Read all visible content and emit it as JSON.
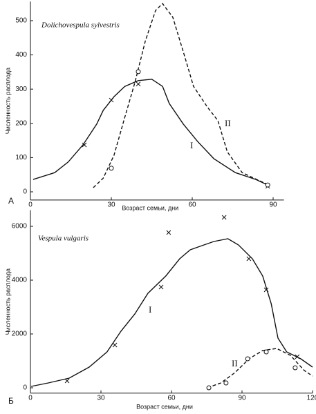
{
  "chart_data": [
    {
      "type": "line",
      "title": "Dolichovespula sylvestris",
      "panel_label": "А",
      "x_label": "Возраст семьи, дни",
      "y_label": "Численность расплода",
      "xlim": [
        0,
        94
      ],
      "ylim": [
        -24,
        556
      ],
      "xticks": [
        0,
        30,
        60,
        90
      ],
      "yticks": [
        0,
        100,
        200,
        300,
        400,
        500
      ],
      "series": [
        {
          "name": "I",
          "style": "solid",
          "color": "#111",
          "x": [
            1,
            9,
            14,
            19.5,
            24.6,
            27,
            31,
            35,
            40,
            45,
            49,
            51.5,
            56.7,
            62,
            68,
            76,
            83.6,
            88
          ],
          "values": [
            36,
            56,
            87,
            137,
            198,
            238,
            278,
            308,
            325,
            329,
            308,
            258,
            198,
            147,
            97,
            56,
            36,
            20
          ]
        },
        {
          "name": "II",
          "style": "dashed",
          "color": "#111",
          "x": [
            23.3,
            27,
            31,
            35,
            38.7,
            42.6,
            46.4,
            49,
            52.8,
            56.7,
            60.5,
            65.6,
            69.5,
            73,
            78.5,
            85,
            88
          ],
          "values": [
            12,
            40,
            107,
            218,
            318,
            440,
            530,
            550,
            510,
            409,
            308,
            248,
            208,
            117,
            56,
            32,
            22
          ]
        }
      ],
      "markers": [
        {
          "shape": "x",
          "x": [
            20,
            30,
            40,
            88
          ],
          "values": [
            137,
            268,
            315,
            16
          ]
        },
        {
          "shape": "o",
          "x": [
            30,
            40,
            88
          ],
          "values": [
            69,
            351,
            20
          ]
        }
      ]
    },
    {
      "type": "line",
      "title": "Vespula vulgaris",
      "panel_label": "Б",
      "x_label": "Возраст семьи, дни",
      "y_label": "Численность расплода",
      "xlim": [
        0,
        120
      ],
      "ylim": [
        -200,
        6600
      ],
      "xticks": [
        0,
        30,
        60,
        90,
        120
      ],
      "yticks": [
        0,
        2000,
        4000,
        6000
      ],
      "series": [
        {
          "name": "I",
          "style": "solid",
          "color": "#111",
          "x": [
            0.3,
            7.6,
            16.5,
            25,
            32.6,
            38.5,
            44.4,
            50,
            57.6,
            63.5,
            68,
            73.8,
            78,
            84,
            88.5,
            94.4,
            98.8,
            102.4,
            105.3,
            109,
            115,
            120
          ],
          "values": [
            51,
            180,
            359,
            770,
            1333,
            2103,
            2744,
            3513,
            4154,
            4795,
            5128,
            5308,
            5436,
            5538,
            5308,
            4795,
            4154,
            3128,
            1846,
            1333,
            1077,
            770
          ]
        },
        {
          "name": "II",
          "style": "dashed",
          "color": "#111",
          "x": [
            75.3,
            81,
            87,
            93,
            98.8,
            104.7,
            110.6,
            116.5,
            120
          ],
          "values": [
            0,
            180,
            564,
            1077,
            1385,
            1461,
            1205,
            641,
            436
          ]
        }
      ],
      "markers": [
        {
          "shape": "x",
          "x": [
            15.6,
            35.9,
            55.6,
            58.8,
            82.4,
            92.9,
            100.3,
            113.5
          ],
          "values": [
            256,
            1590,
            3744,
            5769,
            6333,
            4795,
            3641,
            1154
          ]
        },
        {
          "shape": "o",
          "x": [
            75.9,
            83.2,
            92.4,
            100.3,
            112.6
          ],
          "values": [
            0,
            180,
            1077,
            1333,
            744
          ]
        }
      ]
    }
  ]
}
